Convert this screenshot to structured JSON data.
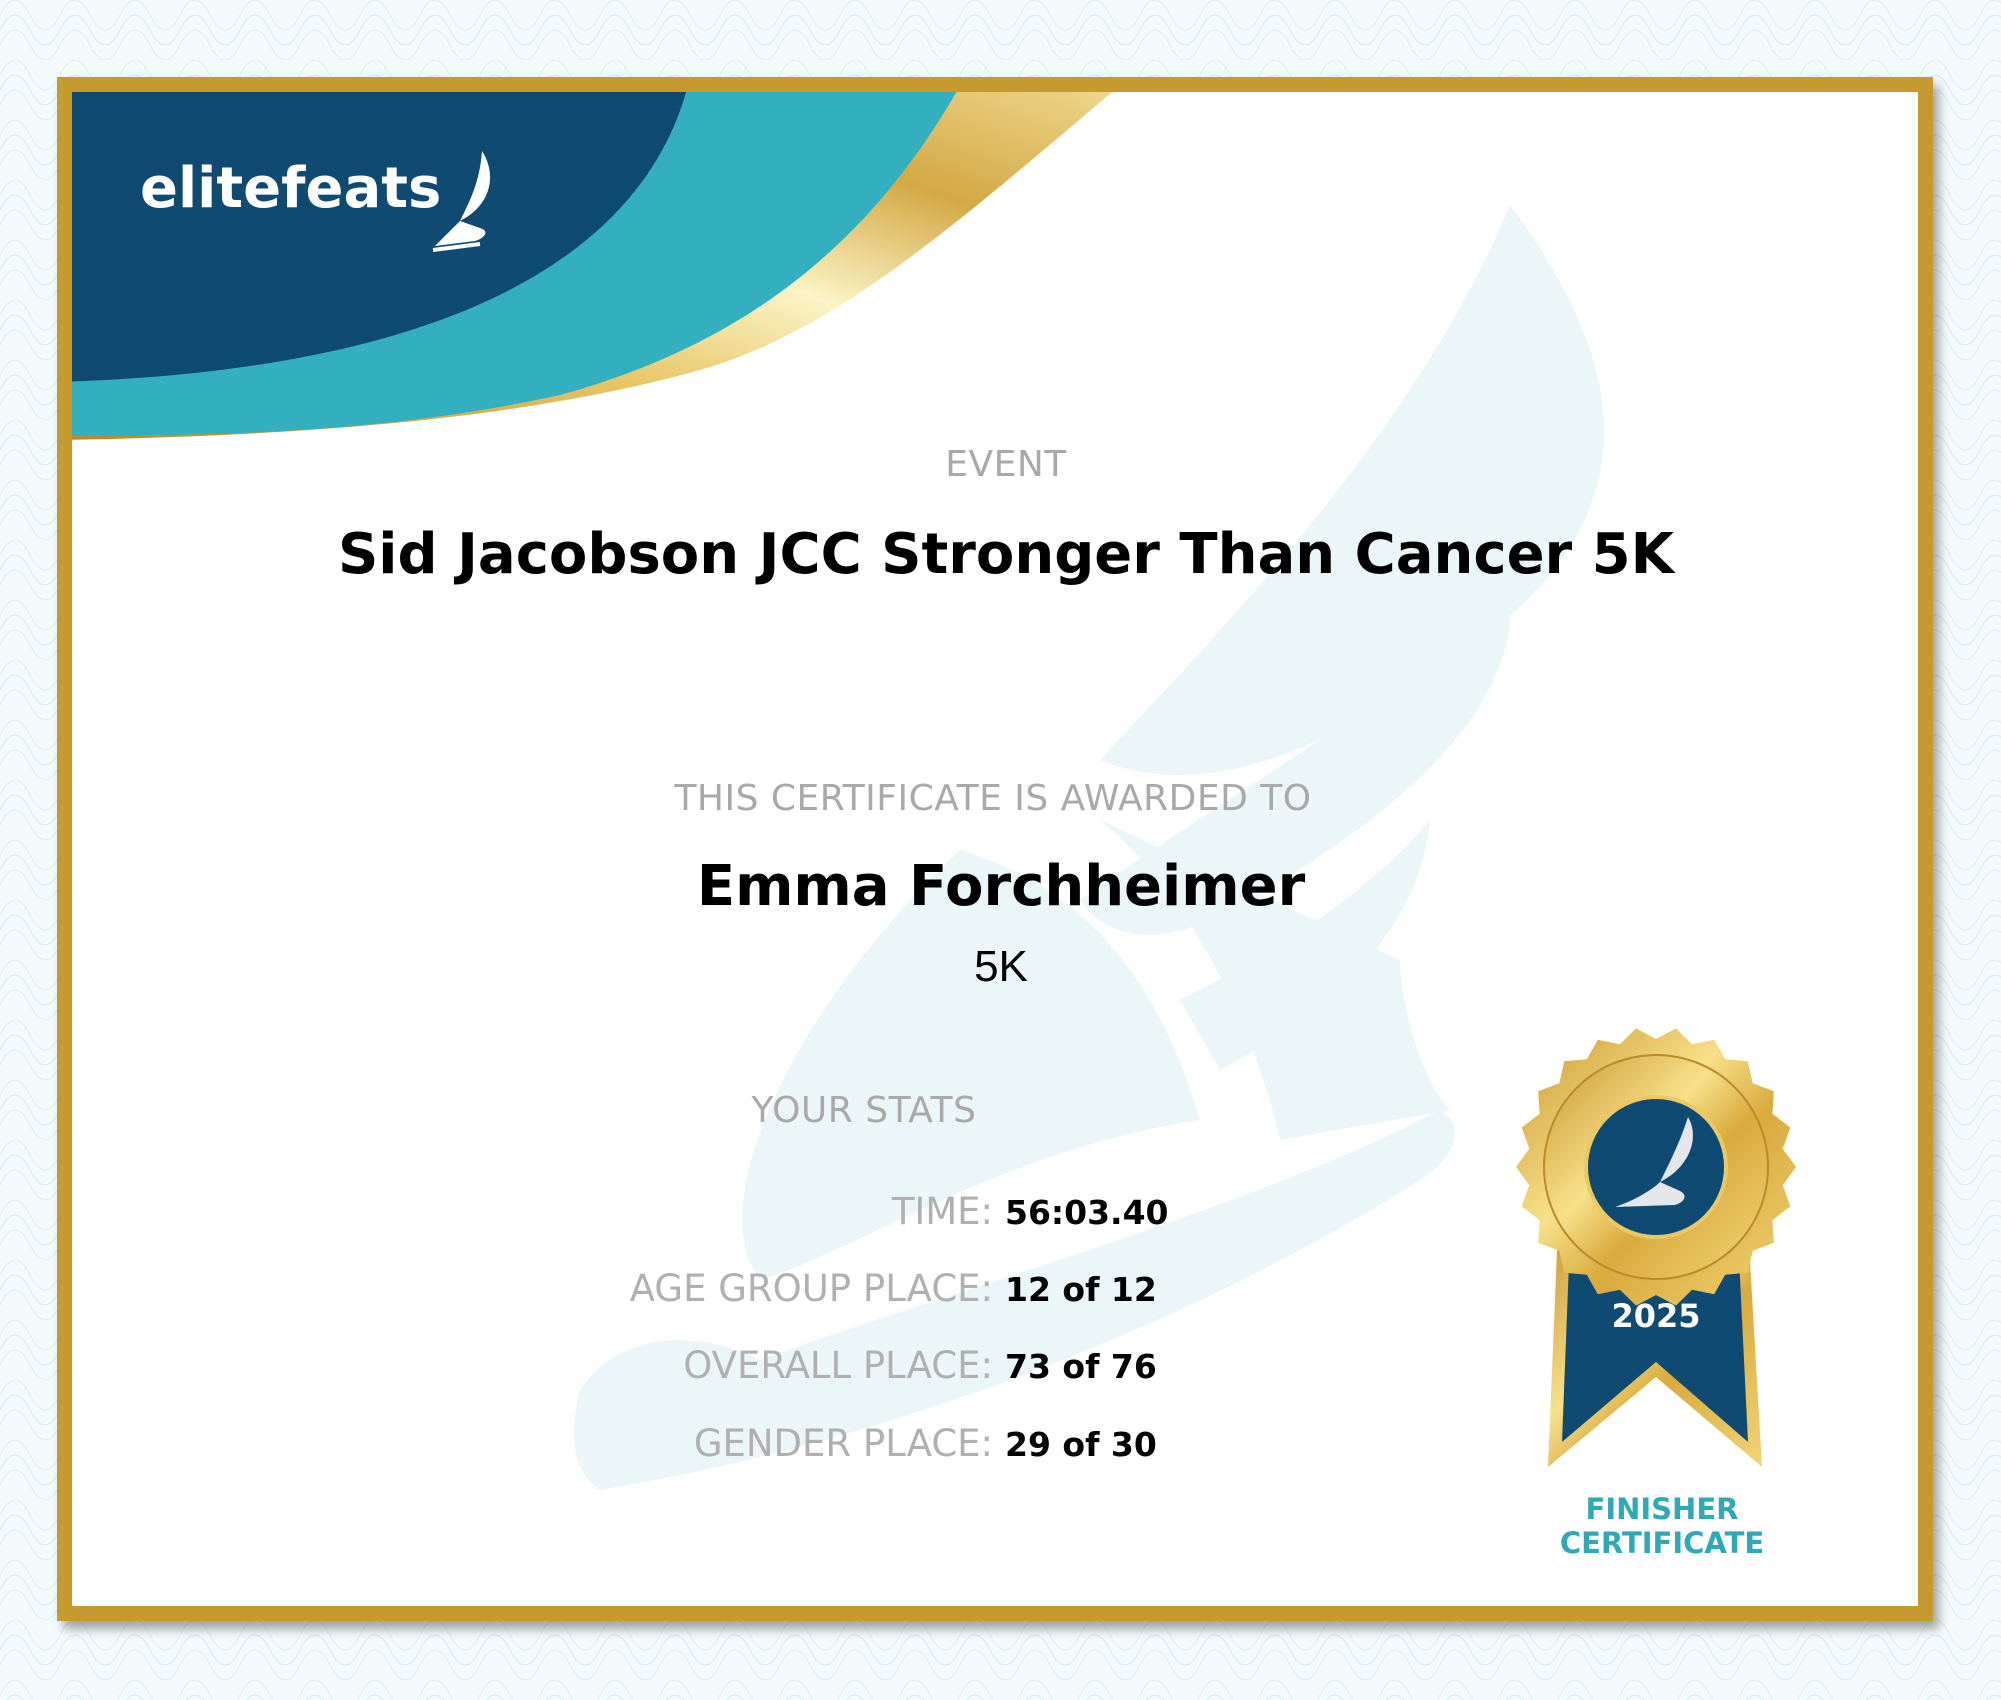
{
  "logo": {
    "text": "elitefeats",
    "icon": "winged-shoe-icon"
  },
  "event": {
    "label": "EVENT",
    "name": "Sid Jacobson JCC Stronger Than Cancer 5K"
  },
  "award": {
    "label": "THIS CERTIFICATE IS AWARDED TO",
    "name": "Emma Forchheimer",
    "race": "5K"
  },
  "stats": {
    "label": "YOUR STATS",
    "rows": [
      {
        "label": "TIME:",
        "value": "56:03.40"
      },
      {
        "label": "AGE GROUP PLACE:",
        "value": "12 of 12"
      },
      {
        "label": "OVERALL PLACE:",
        "value": "73 of 76"
      },
      {
        "label": "GENDER PLACE:",
        "value": "29 of 30"
      }
    ]
  },
  "badge": {
    "year": "2025",
    "caption_line1": "FINISHER",
    "caption_line2": "CERTIFICATE",
    "icon": "winged-shoe-icon"
  },
  "colors": {
    "navy": "#0f4a73",
    "teal": "#33afc0",
    "gold": "#c69a2e",
    "caption": "#2fa8b8"
  }
}
